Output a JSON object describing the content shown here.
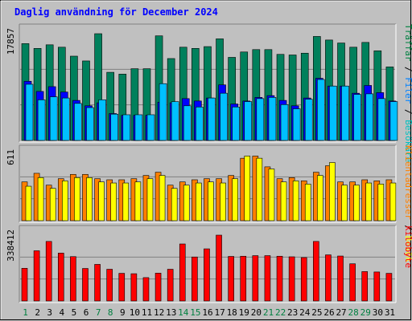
{
  "chart_data": {
    "type": "bar",
    "title": "Daglig användning för December 2024",
    "categories": [
      "1",
      "2",
      "3",
      "4",
      "5",
      "6",
      "7",
      "8",
      "9",
      "10",
      "11",
      "12",
      "13",
      "14",
      "15",
      "16",
      "17",
      "18",
      "19",
      "20",
      "21",
      "22",
      "23",
      "24",
      "25",
      "26",
      "27",
      "28",
      "29",
      "30",
      "31"
    ],
    "weekend_days": [
      "1",
      "7",
      "8",
      "14",
      "15",
      "21",
      "22",
      "28",
      "29"
    ],
    "panels": [
      {
        "max_label": "17857",
        "ymax": 17857,
        "legend": [
          {
            "text": "Träffar",
            "color": "#008040"
          },
          {
            "text": " / ",
            "color": "#000000"
          },
          {
            "text": "Filer",
            "color": "#0080ff"
          },
          {
            "text": " / ",
            "color": "#000000"
          },
          {
            "text": "Besökare",
            "color": "#00c0c0"
          }
        ],
        "series": [
          {
            "name": "Träffar",
            "color": "#00805c",
            "values": [
              16200,
              15400,
              16000,
              15600,
              14100,
              13300,
              17857,
              11400,
              11100,
              12000,
              12000,
              17500,
              13700,
              15600,
              15400,
              15700,
              17000,
              13900,
              14800,
              15200,
              15200,
              14400,
              14300,
              14600,
              17400,
              16800,
              16300,
              15600,
              16400,
              15000,
              12300
            ]
          },
          {
            "name": "Filer",
            "color": "#0000ff",
            "values": [
              9900,
              8200,
              9000,
              8100,
              6700,
              5800,
              6300,
              4500,
              4200,
              4200,
              4200,
              6400,
              6300,
              7000,
              6600,
              7100,
              9300,
              6100,
              6600,
              7200,
              7500,
              6700,
              5800,
              7100,
              10400,
              9100,
              9100,
              7900,
              9200,
              8000,
              6600
            ]
          },
          {
            "name": "Besökare",
            "color": "#00c0ff",
            "values": [
              9400,
              6800,
              7300,
              7100,
              6200,
              5500,
              6800,
              4400,
              4300,
              4300,
              4300,
              9500,
              6500,
              5800,
              5600,
              7100,
              7900,
              5600,
              6500,
              7000,
              7200,
              6000,
              5300,
              6900,
              10200,
              9100,
              9100,
              7700,
              7800,
              7000,
              6500
            ]
          }
        ]
      },
      {
        "max_label": "611",
        "ymax": 611,
        "legend": [
          {
            "text": "Klientadresser",
            "color": "#ff8000"
          },
          {
            "text": " / ",
            "color": "#000000"
          },
          {
            "text": "Besök",
            "color": "#ffff00"
          }
        ],
        "series": [
          {
            "name": "Klientadresser",
            "color": "#ff8000",
            "values": [
              360,
              440,
              330,
              390,
              430,
              430,
              390,
              380,
              380,
              390,
              420,
              450,
              330,
              360,
              380,
              390,
              390,
              420,
              580,
              600,
              500,
              390,
              400,
              370,
              450,
              510,
              360,
              360,
              380,
              370,
              380
            ]
          },
          {
            "name": "Besök",
            "color": "#ffff00",
            "values": [
              320,
              400,
              300,
              370,
              400,
              400,
              360,
              350,
              350,
              360,
              390,
              420,
              300,
              330,
              350,
              360,
              350,
              390,
              600,
              580,
              480,
              360,
              370,
              340,
              420,
              540,
              330,
              330,
              350,
              340,
              350
            ]
          }
        ]
      },
      {
        "max_label": "338412",
        "ymax": 338412,
        "legend": [
          {
            "text": "kilobyte",
            "color": "#ff0000"
          }
        ],
        "series": [
          {
            "name": "kilobyte",
            "color": "#ff0000",
            "values": [
              168000,
              258000,
              306000,
              246000,
              228000,
              167000,
              188000,
              163000,
              142000,
              140000,
              120000,
              143000,
              163000,
              293000,
              226000,
              268000,
              338412,
              229000,
              230000,
              233000,
              233000,
              230000,
              227000,
              223000,
              306000,
              237000,
              231000,
              191000,
              151000,
              149000,
              142000
            ]
          }
        ]
      }
    ]
  }
}
